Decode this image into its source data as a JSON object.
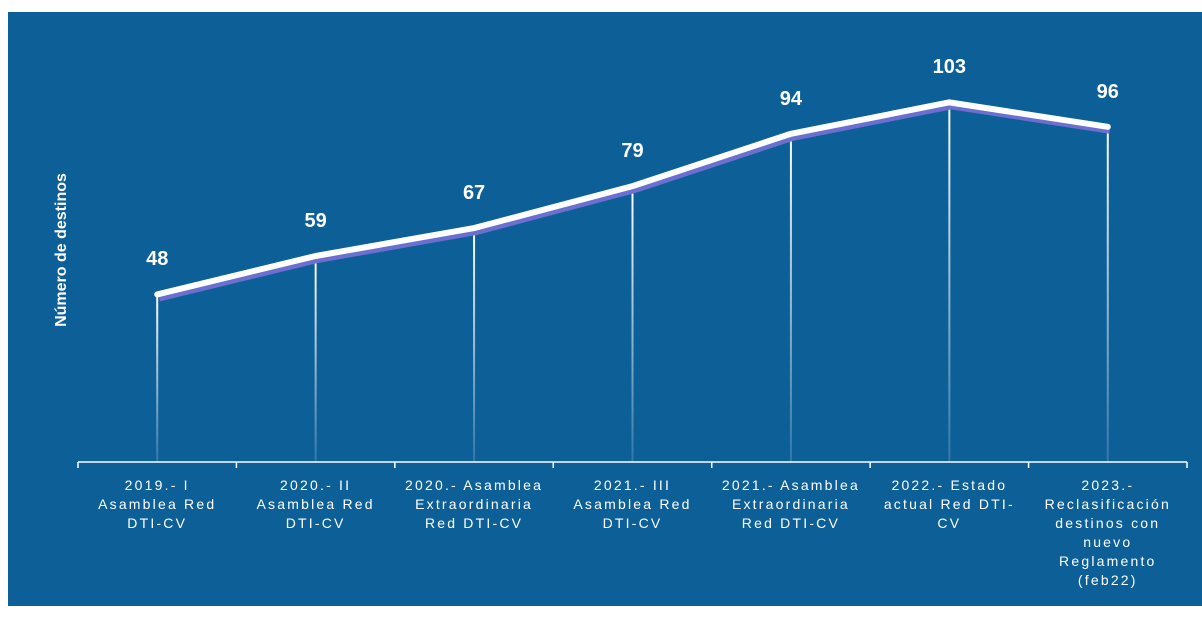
{
  "chart_data": {
    "type": "line",
    "y_label": "Número de destinos",
    "categories": [
      "2019.- I Asamblea Red DTI-CV",
      "2020.- II Asamblea Red DTI-CV",
      "2020.- Asamblea Extraordinaria Red DTI-CV",
      "2021.- III Asamblea Red DTI-CV",
      "2021.- Asamblea Extraordinaria Red DTI-CV",
      "2022.- Estado actual Red DTI-CV",
      "2023.- Reclasificación destinos con nuevo Reglamento (feb22)"
    ],
    "series": [
      {
        "name": "Número de destinos",
        "color": "#ffffff",
        "values": [
          48,
          59,
          67,
          79,
          94,
          103,
          96
        ]
      }
    ],
    "ylim": [
      0,
      120
    ],
    "drop_lines": true
  }
}
